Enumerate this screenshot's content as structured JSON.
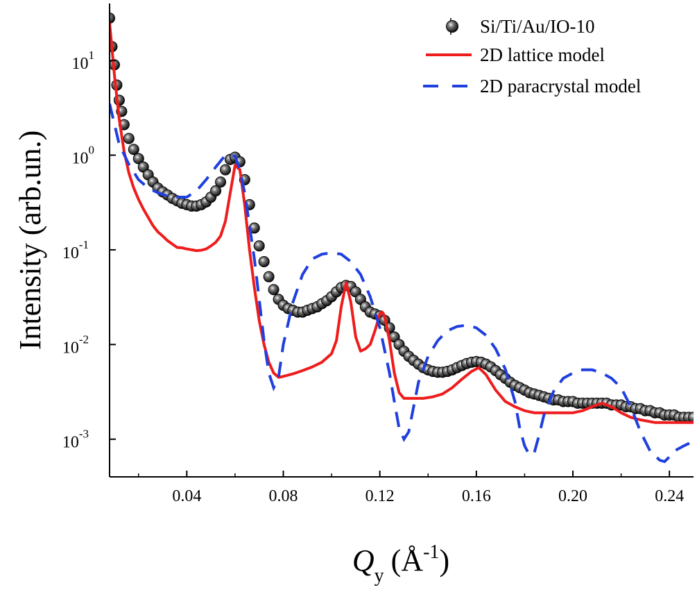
{
  "chart_data": {
    "type": "scatter",
    "xlabel": {
      "symbol": "Q",
      "subscript": "y",
      "unit": "(Å",
      "unit_exp": "-1",
      "unit_close": ")"
    },
    "ylabel": "Intensity (arb.un.)",
    "xlim": [
      0.008,
      0.25
    ],
    "ylim": [
      0.0004,
      40
    ],
    "yscale": "log",
    "x_ticks": [
      0.04,
      0.08,
      0.12,
      0.16,
      0.2,
      0.24
    ],
    "x_tick_labels": [
      "0.04",
      "0.08",
      "0.12",
      "0.16",
      "0.20",
      "0.24"
    ],
    "y_ticks": [
      0.001,
      0.01,
      0.1,
      1,
      10
    ],
    "y_tick_labels": [
      {
        "base": "10",
        "exp": "-3"
      },
      {
        "base": "10",
        "exp": "-2"
      },
      {
        "base": "10",
        "exp": "-1"
      },
      {
        "base": "10",
        "exp": "0"
      },
      {
        "base": "10",
        "exp": "1"
      }
    ],
    "grid": false,
    "legend_position": "top-right",
    "series": [
      {
        "name": "Si/Ti/Au/IO-10",
        "style": "markers-with-errorbars",
        "color": "#1a1a1a",
        "x": [
          0.008,
          0.009,
          0.01,
          0.011,
          0.012,
          0.013,
          0.014,
          0.016,
          0.018,
          0.02,
          0.022,
          0.024,
          0.026,
          0.028,
          0.03,
          0.032,
          0.034,
          0.036,
          0.038,
          0.04,
          0.042,
          0.044,
          0.046,
          0.048,
          0.05,
          0.052,
          0.054,
          0.056,
          0.058,
          0.06,
          0.062,
          0.064,
          0.066,
          0.068,
          0.07,
          0.072,
          0.074,
          0.076,
          0.078,
          0.08,
          0.082,
          0.084,
          0.086,
          0.088,
          0.09,
          0.092,
          0.094,
          0.096,
          0.098,
          0.1,
          0.102,
          0.104,
          0.106,
          0.108,
          0.11,
          0.112,
          0.114,
          0.116,
          0.118,
          0.12,
          0.122,
          0.124,
          0.126,
          0.128,
          0.13,
          0.132,
          0.134,
          0.136,
          0.138,
          0.14,
          0.142,
          0.144,
          0.146,
          0.148,
          0.15,
          0.152,
          0.154,
          0.156,
          0.158,
          0.16,
          0.162,
          0.164,
          0.166,
          0.168,
          0.17,
          0.172,
          0.174,
          0.176,
          0.178,
          0.18,
          0.182,
          0.184,
          0.186,
          0.188,
          0.19,
          0.192,
          0.194,
          0.196,
          0.198,
          0.2,
          0.202,
          0.204,
          0.206,
          0.208,
          0.21,
          0.212,
          0.214,
          0.216,
          0.218,
          0.22,
          0.222,
          0.224,
          0.226,
          0.228,
          0.23,
          0.232,
          0.234,
          0.236,
          0.238,
          0.24,
          0.242,
          0.244,
          0.246,
          0.248,
          0.25
        ],
        "y": [
          28,
          14,
          9,
          5.5,
          3.8,
          2.9,
          2.1,
          1.5,
          1.15,
          0.92,
          0.75,
          0.62,
          0.52,
          0.45,
          0.41,
          0.38,
          0.35,
          0.33,
          0.31,
          0.3,
          0.29,
          0.29,
          0.3,
          0.32,
          0.36,
          0.42,
          0.52,
          0.7,
          0.9,
          0.95,
          0.85,
          0.55,
          0.3,
          0.17,
          0.11,
          0.075,
          0.052,
          0.038,
          0.03,
          0.026,
          0.024,
          0.023,
          0.022,
          0.022,
          0.023,
          0.024,
          0.025,
          0.027,
          0.029,
          0.032,
          0.036,
          0.04,
          0.042,
          0.041,
          0.036,
          0.03,
          0.025,
          0.022,
          0.021,
          0.02,
          0.018,
          0.015,
          0.012,
          0.01,
          0.0085,
          0.0075,
          0.0068,
          0.0062,
          0.0057,
          0.0054,
          0.0052,
          0.0051,
          0.0051,
          0.0052,
          0.0054,
          0.0057,
          0.006,
          0.0063,
          0.0065,
          0.0066,
          0.0065,
          0.0062,
          0.0058,
          0.0053,
          0.0048,
          0.0044,
          0.004,
          0.0037,
          0.0035,
          0.0033,
          0.0031,
          0.003,
          0.0029,
          0.0028,
          0.0027,
          0.0026,
          0.0026,
          0.0025,
          0.0025,
          0.0025,
          0.0024,
          0.0024,
          0.0024,
          0.0024,
          0.0024,
          0.0024,
          0.0024,
          0.0023,
          0.0023,
          0.0023,
          0.0022,
          0.0022,
          0.0021,
          0.0021,
          0.002,
          0.002,
          0.0019,
          0.0019,
          0.0018,
          0.0018,
          0.0018,
          0.0017,
          0.0017,
          0.0017,
          0.0017
        ]
      },
      {
        "name": "2D lattice model",
        "style": "solid-line",
        "color": "#ee1c1c",
        "x": [
          0.008,
          0.01,
          0.012,
          0.014,
          0.016,
          0.018,
          0.02,
          0.022,
          0.024,
          0.026,
          0.028,
          0.03,
          0.032,
          0.034,
          0.036,
          0.038,
          0.04,
          0.042,
          0.044,
          0.046,
          0.048,
          0.05,
          0.052,
          0.054,
          0.056,
          0.058,
          0.06,
          0.062,
          0.064,
          0.066,
          0.068,
          0.07,
          0.072,
          0.074,
          0.076,
          0.078,
          0.08,
          0.084,
          0.088,
          0.092,
          0.096,
          0.1,
          0.102,
          0.104,
          0.106,
          0.108,
          0.11,
          0.112,
          0.114,
          0.116,
          0.118,
          0.12,
          0.121,
          0.122,
          0.124,
          0.126,
          0.128,
          0.13,
          0.134,
          0.138,
          0.142,
          0.146,
          0.15,
          0.154,
          0.158,
          0.161,
          0.164,
          0.168,
          0.172,
          0.176,
          0.18,
          0.184,
          0.19,
          0.196,
          0.2,
          0.204,
          0.208,
          0.212,
          0.216,
          0.22,
          0.224,
          0.228,
          0.234,
          0.24,
          0.246,
          0.25
        ],
        "y": [
          25,
          7.0,
          2.4,
          1.1,
          0.65,
          0.45,
          0.34,
          0.27,
          0.22,
          0.18,
          0.155,
          0.14,
          0.125,
          0.115,
          0.106,
          0.105,
          0.102,
          0.1,
          0.098,
          0.099,
          0.102,
          0.11,
          0.12,
          0.14,
          0.2,
          0.4,
          0.78,
          0.7,
          0.3,
          0.1,
          0.04,
          0.018,
          0.01,
          0.0065,
          0.005,
          0.0045,
          0.0046,
          0.0049,
          0.0053,
          0.0058,
          0.0065,
          0.008,
          0.011,
          0.025,
          0.045,
          0.028,
          0.012,
          0.0085,
          0.009,
          0.01,
          0.014,
          0.021,
          0.022,
          0.02,
          0.011,
          0.005,
          0.0031,
          0.0027,
          0.0027,
          0.0027,
          0.0028,
          0.003,
          0.0035,
          0.0043,
          0.0052,
          0.0057,
          0.0048,
          0.0033,
          0.0025,
          0.0022,
          0.002,
          0.0019,
          0.0019,
          0.0019,
          0.0019,
          0.002,
          0.0022,
          0.0024,
          0.0022,
          0.0019,
          0.0017,
          0.0016,
          0.0015,
          0.0015,
          0.0015,
          0.0015
        ]
      },
      {
        "name": "2D paracrystal model",
        "style": "dashed-line",
        "color": "#1f3fde",
        "x": [
          0.008,
          0.012,
          0.016,
          0.02,
          0.024,
          0.028,
          0.032,
          0.036,
          0.04,
          0.044,
          0.048,
          0.052,
          0.056,
          0.06,
          0.062,
          0.064,
          0.066,
          0.068,
          0.07,
          0.072,
          0.074,
          0.076,
          0.078,
          0.08,
          0.084,
          0.088,
          0.092,
          0.096,
          0.1,
          0.104,
          0.108,
          0.112,
          0.116,
          0.12,
          0.124,
          0.126,
          0.128,
          0.13,
          0.132,
          0.134,
          0.136,
          0.14,
          0.144,
          0.148,
          0.152,
          0.156,
          0.16,
          0.164,
          0.168,
          0.172,
          0.176,
          0.178,
          0.18,
          0.182,
          0.184,
          0.186,
          0.188,
          0.192,
          0.196,
          0.2,
          0.204,
          0.208,
          0.212,
          0.216,
          0.22,
          0.224,
          0.228,
          0.232,
          0.236,
          0.238,
          0.24,
          0.242,
          0.246,
          0.25
        ],
        "y": [
          3.5,
          1.3,
          0.8,
          0.55,
          0.45,
          0.4,
          0.37,
          0.36,
          0.36,
          0.42,
          0.55,
          0.75,
          1.0,
          0.98,
          0.7,
          0.4,
          0.18,
          0.08,
          0.03,
          0.011,
          0.005,
          0.0035,
          0.0045,
          0.01,
          0.028,
          0.055,
          0.08,
          0.09,
          0.093,
          0.09,
          0.075,
          0.055,
          0.032,
          0.015,
          0.005,
          0.0025,
          0.0013,
          0.001,
          0.0012,
          0.0022,
          0.004,
          0.0075,
          0.011,
          0.014,
          0.0155,
          0.016,
          0.015,
          0.0125,
          0.009,
          0.0055,
          0.0025,
          0.0013,
          0.00085,
          0.00068,
          0.00072,
          0.0011,
          0.0018,
          0.0032,
          0.0044,
          0.005,
          0.0054,
          0.0054,
          0.005,
          0.0044,
          0.0035,
          0.0022,
          0.0012,
          0.00075,
          0.0006,
          0.00058,
          0.00065,
          0.00075,
          0.00085,
          0.00095
        ]
      }
    ]
  }
}
